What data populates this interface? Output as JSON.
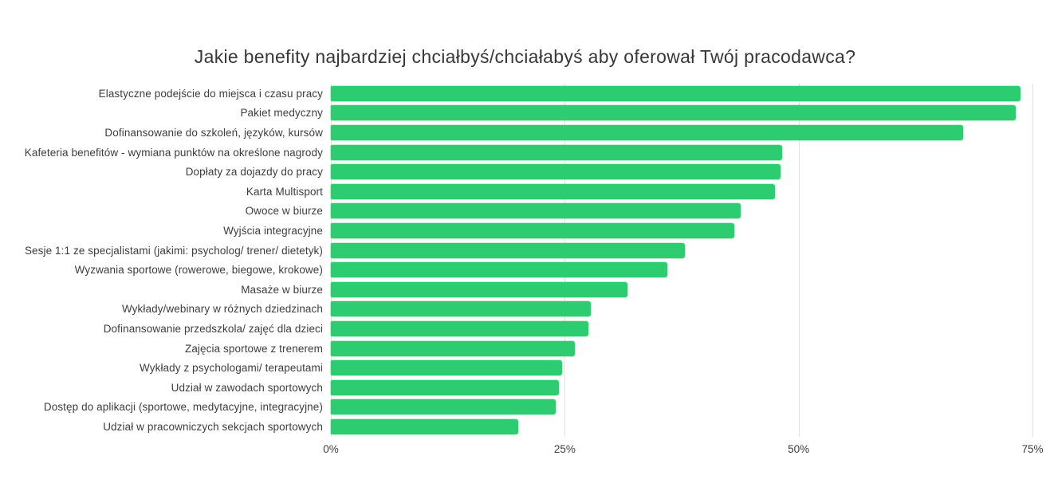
{
  "chart_data": {
    "type": "bar",
    "orientation": "horizontal",
    "title": "Jakie benefity najbardziej chciałbyś/chciałabyś aby oferował Twój pracodawca?",
    "categories": [
      "Elastyczne podejście do miejsca i czasu pracy",
      "Pakiet medyczny",
      "Dofinansowanie do szkoleń, języków, kursów",
      "Kafeteria benefitów - wymiana punktów na określone nagrody",
      "Dopłaty za dojazdy do pracy",
      "Karta Multisport",
      "Owoce w biurze",
      "Wyjścia integracyjne",
      "Sesje 1:1 ze specjalistami (jakimi: psycholog/ trener/ dietetyk)",
      "Wyzwania sportowe (rowerowe, biegowe, krokowe)",
      "Masaże w biurze",
      "Wykłady/webinary w różnych dziedzinach",
      "Dofinansowanie przedszkola/ zajęć dla dzieci",
      "Zajęcia sportowe z trenerem",
      "Wykłady z psychologami/ terapeutami",
      "Udział w zawodach sportowych",
      "Dostęp do aplikacji (sportowe, medytacyjne, integracyjne)",
      "Udział w pracowniczych sekcjach sportowych"
    ],
    "values": [
      73.7,
      73.2,
      67.6,
      48.2,
      48.1,
      47.5,
      43.8,
      43.1,
      37.8,
      36.0,
      31.7,
      27.8,
      27.5,
      26.1,
      24.7,
      24.4,
      24.0,
      20.0
    ],
    "unit": "%",
    "x_axis": {
      "min": 0,
      "max": 75,
      "ticks": [
        "0%",
        "25%",
        "50%",
        "75%"
      ],
      "tick_values": [
        0,
        25,
        50,
        75
      ]
    },
    "ylabel": "",
    "xlabel": "",
    "legend": false,
    "grid": "vertical",
    "colors": {
      "bar": "#2ECC71",
      "bar_outline": "rgba(46,204,113,0.30)",
      "gridline": "#E2E2E2",
      "text": "#3D3D3D",
      "title": "#383838",
      "background": "#FFFFFF"
    }
  }
}
